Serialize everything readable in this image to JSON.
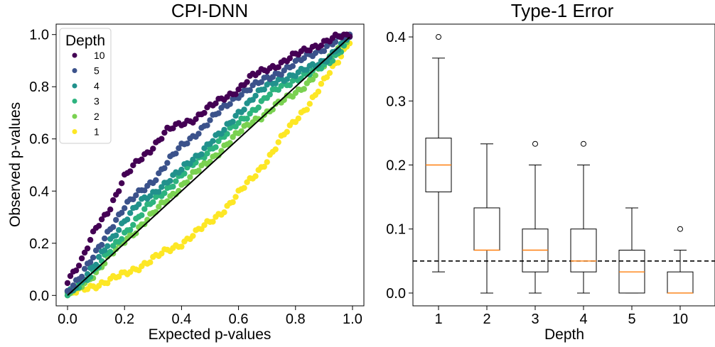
{
  "chart_data": [
    {
      "type": "scatter",
      "title": "CPI-DNN",
      "xlabel": "Expected p-values",
      "ylabel": "Observed p-values",
      "xlim": [
        -0.04,
        1.04
      ],
      "ylim": [
        -0.04,
        1.04
      ],
      "xticks": [
        "0.0",
        "0.2",
        "0.4",
        "0.6",
        "0.8",
        "1.0"
      ],
      "yticks": [
        "0.0",
        "0.2",
        "0.4",
        "0.6",
        "0.8",
        "1.0"
      ],
      "reference_line": "y = x",
      "legend": {
        "title": "Depth",
        "position": "upper left"
      },
      "series": [
        {
          "name": "10",
          "color": "#440154",
          "anchors": [
            [
              0,
              0.06
            ],
            [
              0.05,
              0.13
            ],
            [
              0.1,
              0.26
            ],
            [
              0.15,
              0.34
            ],
            [
              0.2,
              0.45
            ],
            [
              0.25,
              0.52
            ],
            [
              0.3,
              0.57
            ],
            [
              0.35,
              0.63
            ],
            [
              0.4,
              0.66
            ],
            [
              0.45,
              0.68
            ],
            [
              0.5,
              0.72
            ],
            [
              0.55,
              0.76
            ],
            [
              0.6,
              0.79
            ],
            [
              0.65,
              0.84
            ],
            [
              0.7,
              0.87
            ],
            [
              0.75,
              0.89
            ],
            [
              0.8,
              0.92
            ],
            [
              0.85,
              0.95
            ],
            [
              0.9,
              0.97
            ],
            [
              0.95,
              0.99
            ],
            [
              0.99,
              1.0
            ]
          ]
        },
        {
          "name": "5",
          "color": "#3b528b",
          "anchors": [
            [
              0,
              0.02
            ],
            [
              0.05,
              0.08
            ],
            [
              0.1,
              0.16
            ],
            [
              0.15,
              0.26
            ],
            [
              0.2,
              0.34
            ],
            [
              0.25,
              0.39
            ],
            [
              0.3,
              0.44
            ],
            [
              0.35,
              0.51
            ],
            [
              0.4,
              0.57
            ],
            [
              0.45,
              0.62
            ],
            [
              0.5,
              0.67
            ],
            [
              0.55,
              0.72
            ],
            [
              0.6,
              0.77
            ],
            [
              0.65,
              0.8
            ],
            [
              0.7,
              0.83
            ],
            [
              0.75,
              0.86
            ],
            [
              0.8,
              0.89
            ],
            [
              0.85,
              0.92
            ],
            [
              0.9,
              0.95
            ],
            [
              0.95,
              0.98
            ],
            [
              0.99,
              1.0
            ]
          ]
        },
        {
          "name": "4",
          "color": "#21918c",
          "anchors": [
            [
              0,
              0.01
            ],
            [
              0.05,
              0.06
            ],
            [
              0.1,
              0.12
            ],
            [
              0.15,
              0.21
            ],
            [
              0.2,
              0.29
            ],
            [
              0.25,
              0.35
            ],
            [
              0.3,
              0.39
            ],
            [
              0.35,
              0.44
            ],
            [
              0.4,
              0.48
            ],
            [
              0.45,
              0.53
            ],
            [
              0.5,
              0.59
            ],
            [
              0.55,
              0.63
            ],
            [
              0.6,
              0.7
            ],
            [
              0.65,
              0.76
            ],
            [
              0.7,
              0.8
            ],
            [
              0.75,
              0.83
            ],
            [
              0.8,
              0.85
            ],
            [
              0.85,
              0.87
            ],
            [
              0.9,
              0.9
            ],
            [
              0.95,
              0.95
            ],
            [
              0.99,
              0.99
            ]
          ]
        },
        {
          "name": "3",
          "color": "#2db37f",
          "anchors": [
            [
              0,
              0.0
            ],
            [
              0.05,
              0.05
            ],
            [
              0.1,
              0.1
            ],
            [
              0.15,
              0.17
            ],
            [
              0.2,
              0.24
            ],
            [
              0.25,
              0.3
            ],
            [
              0.3,
              0.36
            ],
            [
              0.35,
              0.41
            ],
            [
              0.4,
              0.46
            ],
            [
              0.45,
              0.51
            ],
            [
              0.5,
              0.56
            ],
            [
              0.55,
              0.61
            ],
            [
              0.6,
              0.66
            ],
            [
              0.65,
              0.71
            ],
            [
              0.7,
              0.76
            ],
            [
              0.75,
              0.8
            ],
            [
              0.8,
              0.83
            ],
            [
              0.85,
              0.85
            ],
            [
              0.9,
              0.88
            ],
            [
              0.95,
              0.93
            ],
            [
              0.99,
              0.99
            ]
          ]
        },
        {
          "name": "2",
          "color": "#7ad151",
          "anchors": [
            [
              0,
              0.0
            ],
            [
              0.05,
              0.04
            ],
            [
              0.1,
              0.09
            ],
            [
              0.15,
              0.15
            ],
            [
              0.2,
              0.21
            ],
            [
              0.25,
              0.26
            ],
            [
              0.3,
              0.31
            ],
            [
              0.35,
              0.37
            ],
            [
              0.4,
              0.42
            ],
            [
              0.45,
              0.47
            ],
            [
              0.5,
              0.52
            ],
            [
              0.55,
              0.57
            ],
            [
              0.6,
              0.62
            ],
            [
              0.65,
              0.67
            ],
            [
              0.7,
              0.7
            ],
            [
              0.75,
              0.74
            ],
            [
              0.8,
              0.78
            ],
            [
              0.85,
              0.82
            ],
            [
              0.9,
              0.88
            ],
            [
              0.95,
              0.95
            ],
            [
              0.99,
              0.99
            ]
          ]
        },
        {
          "name": "1",
          "color": "#fde725",
          "anchors": [
            [
              0,
              0.0
            ],
            [
              0.05,
              0.02
            ],
            [
              0.1,
              0.04
            ],
            [
              0.15,
              0.06
            ],
            [
              0.2,
              0.08
            ],
            [
              0.25,
              0.11
            ],
            [
              0.3,
              0.14
            ],
            [
              0.35,
              0.17
            ],
            [
              0.4,
              0.2
            ],
            [
              0.45,
              0.24
            ],
            [
              0.5,
              0.28
            ],
            [
              0.55,
              0.33
            ],
            [
              0.6,
              0.39
            ],
            [
              0.65,
              0.45
            ],
            [
              0.7,
              0.52
            ],
            [
              0.75,
              0.6
            ],
            [
              0.8,
              0.67
            ],
            [
              0.85,
              0.74
            ],
            [
              0.9,
              0.82
            ],
            [
              0.95,
              0.9
            ],
            [
              0.99,
              0.98
            ]
          ]
        }
      ]
    },
    {
      "type": "box",
      "title": "Type-1 Error",
      "xlabel": "Depth",
      "ylabel": "",
      "ylim": [
        -0.02,
        0.42
      ],
      "yticks": [
        "0.0",
        "0.1",
        "0.2",
        "0.3",
        "0.4"
      ],
      "reference_line": {
        "y": 0.05,
        "style": "dashed"
      },
      "median_color": "#ff7f0e",
      "boxes": [
        {
          "label": "1",
          "whisker_low": 0.033,
          "q1": 0.158,
          "median": 0.2,
          "q3": 0.242,
          "whisker_high": 0.367,
          "outliers": [
            0.4
          ]
        },
        {
          "label": "2",
          "whisker_low": 0.0,
          "q1": 0.067,
          "median": 0.067,
          "q3": 0.133,
          "whisker_high": 0.233,
          "outliers": []
        },
        {
          "label": "3",
          "whisker_low": 0.0,
          "q1": 0.033,
          "median": 0.067,
          "q3": 0.1,
          "whisker_high": 0.2,
          "outliers": [
            0.233
          ]
        },
        {
          "label": "4",
          "whisker_low": 0.0,
          "q1": 0.033,
          "median": 0.05,
          "q3": 0.1,
          "whisker_high": 0.2,
          "outliers": [
            0.233
          ]
        },
        {
          "label": "5",
          "whisker_low": 0.0,
          "q1": 0.0,
          "median": 0.033,
          "q3": 0.067,
          "whisker_high": 0.133,
          "outliers": []
        },
        {
          "label": "10",
          "whisker_low": 0.0,
          "q1": 0.0,
          "median": 0.0,
          "q3": 0.033,
          "whisker_high": 0.067,
          "outliers": [
            0.1
          ]
        }
      ]
    }
  ]
}
